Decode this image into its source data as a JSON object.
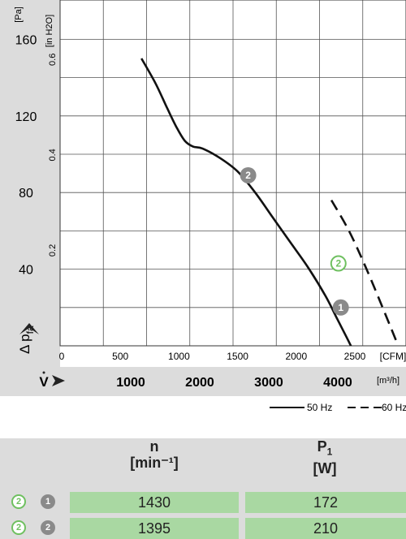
{
  "chart_data": {
    "type": "line",
    "y_unit_pa": "[Pa]",
    "y_unit_inh2o": "[in H2O]",
    "y_axis_label_main": "Δ p",
    "y_axis_label_sub": "fa",
    "y_ticks_pa": [
      "40",
      "80",
      "120",
      "160"
    ],
    "y_ticks_inh2o": [
      "0.2",
      "0.4",
      "0.6"
    ],
    "x_ticks_cfm": [
      "0",
      "500",
      "1000",
      "1500",
      "2000",
      "2500"
    ],
    "x_unit_cfm": "[CFM]",
    "x_axis_label": "V",
    "x_ticks_m3h": [
      "1000",
      "2000",
      "3000",
      "4000"
    ],
    "x_unit_m3h": "[m³/h]",
    "xlim_cfm": [
      0,
      2900
    ],
    "ylim_pa": [
      0,
      180
    ],
    "grid": true,
    "series": [
      {
        "name": "50 Hz",
        "style": "solid",
        "color": "#111111",
        "x": [
          680,
          800,
          900,
          980,
          1050,
          1120,
          1200,
          1350,
          1500,
          1650,
          1800,
          1950,
          2100,
          2250,
          2350,
          2450,
          2520
        ],
        "y": [
          150,
          137,
          124,
          114,
          107,
          104,
          103,
          98,
          91,
          80,
          67,
          54,
          41,
          26,
          14,
          2,
          -7
        ]
      },
      {
        "name": "60 Hz",
        "style": "dashed",
        "color": "#111111",
        "x": [
          2300,
          2450,
          2600,
          2750,
          2850
        ],
        "y": [
          76,
          60,
          40,
          18,
          3
        ]
      }
    ],
    "markers": [
      {
        "label": "2",
        "style": "outline",
        "x": 2360,
        "y": 43
      },
      {
        "label": "1",
        "style": "filled",
        "x": 2380,
        "y": 20
      },
      {
        "label": "2",
        "style": "filled",
        "x": 1590,
        "y": 89
      }
    ],
    "legend": [
      {
        "label": "50 Hz",
        "style": "solid"
      },
      {
        "label": "60 Hz",
        "style": "dashed"
      }
    ]
  },
  "table": {
    "col1_symbol": "n",
    "col1_unit": "[min⁻¹]",
    "col2_symbol": "P",
    "col2_sub": "1",
    "col2_unit": "[W]",
    "rows": [
      {
        "badge_outline": "2",
        "badge_filled": "1",
        "n": "1430",
        "p1": "172"
      },
      {
        "badge_outline": "2",
        "badge_filled": "2",
        "n": "1395",
        "p1": "210"
      }
    ]
  },
  "colors": {
    "panel": "#dcdcdc",
    "cell": "#a9d8a2",
    "outline_badge": "#6fc060",
    "filled_badge": "#8a8a8a"
  }
}
